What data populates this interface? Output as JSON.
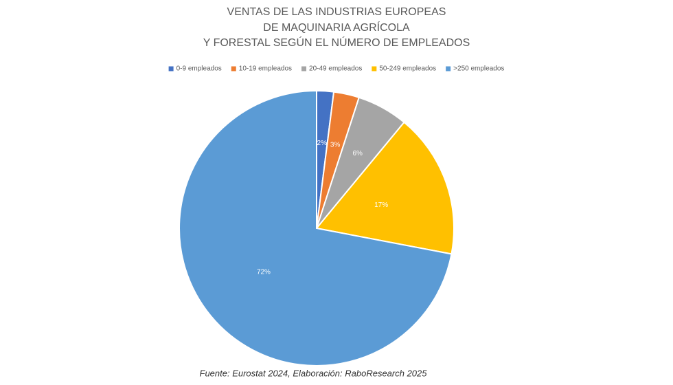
{
  "chart_data": {
    "type": "pie",
    "title": [
      "VENTAS DE LAS INDUSTRIAS EUROPEAS",
      "DE MAQUINARIA AGRÍCOLA",
      "Y FORESTAL SEGÚN EL NÚMERO DE EMPLEADOS"
    ],
    "categories": [
      "0-9 empleados",
      "10-19 empleados",
      "20-49 empleados",
      "50-249 empleados",
      ">250 empleados"
    ],
    "values": [
      2,
      3,
      6,
      17,
      72
    ],
    "value_labels": [
      "2%",
      "3%",
      "6%",
      "17%",
      "72%"
    ],
    "colors": [
      "#4472c4",
      "#ed7d31",
      "#a5a5a5",
      "#ffc000",
      "#5b9bd5"
    ],
    "legend": "top",
    "source": "Fuente: Eurostat 2024, Elaboración: RaboResearch 2025"
  }
}
